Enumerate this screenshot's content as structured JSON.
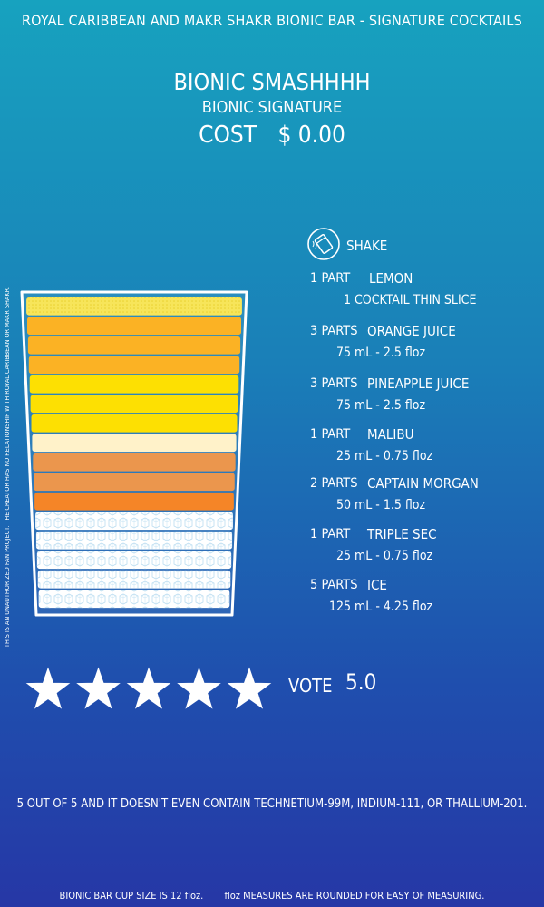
{
  "header": {
    "title": "ROYAL CARIBBEAN AND MAKR SHAKR BIONIC BAR - SIGNATURE COCKTAILS"
  },
  "drink": {
    "name": "BIONIC SMASHHHH",
    "category": "BIONIC SIGNATURE",
    "cost_label": "COST",
    "cost_value": "$ 0.00"
  },
  "disclaimer": "THIS IS AN UNAUTHORIZED FAN PROJECT. THE CREATOR HAS NO RELATIONSHIP WITH ROYAL CARIBBEAN OR MAKR SHAKR.",
  "method": {
    "label": "SHAKE",
    "icon": "shaker-icon"
  },
  "ingredients": [
    {
      "parts": "1 PART",
      "name": "LEMON",
      "detail": "1 COCKTAIL THIN SLICE"
    },
    {
      "parts": "3 PARTS",
      "name": "ORANGE JUICE",
      "detail": "75 mL - 2.5 floz"
    },
    {
      "parts": "3 PARTS",
      "name": "PINEAPPLE JUICE",
      "detail": "75 mL - 2.5 floz"
    },
    {
      "parts": "1 PART",
      "name": "MALIBU",
      "detail": "25 mL - 0.75 floz"
    },
    {
      "parts": "2 PARTS",
      "name": "CAPTAIN MORGAN",
      "detail": "50 mL - 1.5 floz"
    },
    {
      "parts": "1 PART",
      "name": "TRIPLE SEC",
      "detail": "25 mL - 0.75 floz"
    },
    {
      "parts": "5 PARTS",
      "name": "ICE",
      "detail": "125 mL - 4.25 floz"
    }
  ],
  "glass_layers": [
    {
      "ingredient": "LEMON",
      "color": "#f7e55a",
      "pattern": "dots"
    },
    {
      "ingredient": "ORANGE JUICE",
      "color": "#fbb224"
    },
    {
      "ingredient": "ORANGE JUICE",
      "color": "#fbb224"
    },
    {
      "ingredient": "ORANGE JUICE",
      "color": "#fbb224"
    },
    {
      "ingredient": "PINEAPPLE JUICE",
      "color": "#fde002"
    },
    {
      "ingredient": "PINEAPPLE JUICE",
      "color": "#fde002"
    },
    {
      "ingredient": "PINEAPPLE JUICE",
      "color": "#fde002"
    },
    {
      "ingredient": "MALIBU",
      "color": "#fff2c9"
    },
    {
      "ingredient": "CAPTAIN MORGAN",
      "color": "#eb964d"
    },
    {
      "ingredient": "CAPTAIN MORGAN",
      "color": "#eb964d"
    },
    {
      "ingredient": "TRIPLE SEC",
      "color": "#f58527"
    },
    {
      "ingredient": "ICE",
      "color": "#ffffff",
      "pattern": "ice"
    },
    {
      "ingredient": "ICE",
      "color": "#ffffff",
      "pattern": "ice"
    },
    {
      "ingredient": "ICE",
      "color": "#ffffff",
      "pattern": "ice"
    },
    {
      "ingredient": "ICE",
      "color": "#ffffff",
      "pattern": "ice"
    },
    {
      "ingredient": "ICE",
      "color": "#ffffff",
      "pattern": "ice"
    }
  ],
  "rating": {
    "stars": 5,
    "max": 5,
    "vote_label": "VOTE",
    "vote_value": "5.0"
  },
  "comment": "5 OUT OF 5 AND IT DOESN'T EVEN CONTAIN TECHNETIUM-99M, INDIUM-111, OR THALLIUM-201.",
  "footer": {
    "cup_note": "BIONIC BAR CUP SIZE IS 12 floz.",
    "round_note": "floz MEASURES ARE ROUNDED FOR EASY OF MEASURING."
  }
}
